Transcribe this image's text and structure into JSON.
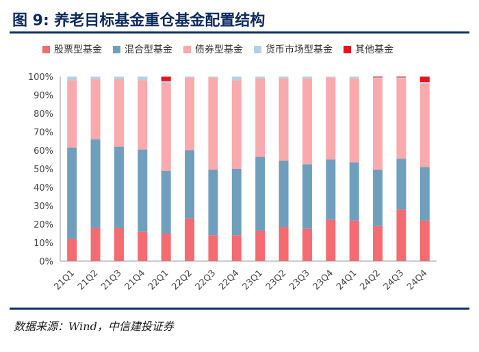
{
  "title": "图 9: 养老目标基金重仓基金配置结构",
  "source": "数据来源：Wind，中信建投证券",
  "chart_data": {
    "type": "bar",
    "stacked": true,
    "categories": [
      "21Q1",
      "21Q2",
      "21Q3",
      "21Q4",
      "22Q1",
      "22Q2",
      "22Q3",
      "22Q4",
      "23Q1",
      "23Q2",
      "23Q3",
      "23Q4",
      "24Q1",
      "24Q2",
      "24Q3",
      "24Q4"
    ],
    "series": [
      {
        "name": "股票型基金",
        "color": "#f46b72",
        "values": [
          12,
          18,
          18,
          16,
          15,
          23,
          14,
          14,
          16.5,
          18.5,
          17.5,
          22.5,
          22,
          19,
          28,
          22
        ]
      },
      {
        "name": "混合型基金",
        "color": "#6f9fbd",
        "values": [
          49.5,
          48,
          44,
          44.5,
          34,
          37,
          35.5,
          36,
          40,
          36,
          35,
          32.5,
          31.5,
          30.5,
          27.5,
          29
        ]
      },
      {
        "name": "债券型基金",
        "color": "#f8aaad",
        "values": [
          36.5,
          32.5,
          36.5,
          37.5,
          47.5,
          39.5,
          50,
          48,
          42.5,
          44.5,
          46.5,
          44.5,
          45.5,
          49.5,
          43.5,
          45
        ]
      },
      {
        "name": "货币市场型基金",
        "color": "#b7cfe0",
        "values": [
          2,
          1.5,
          1.5,
          2,
          1,
          0.5,
          0.5,
          2,
          1,
          1,
          1,
          0.5,
          1,
          0.5,
          0.5,
          1
        ]
      },
      {
        "name": "其他基金",
        "color": "#e8141c",
        "values": [
          0,
          0,
          0,
          0,
          2.5,
          0,
          0,
          0,
          0,
          0,
          0,
          0,
          0,
          0.5,
          0.5,
          3
        ]
      }
    ],
    "yticks": [
      "0%",
      "10%",
      "20%",
      "30%",
      "40%",
      "50%",
      "60%",
      "70%",
      "80%",
      "90%",
      "100%"
    ],
    "ylim": [
      0,
      100
    ],
    "legend": "top"
  }
}
